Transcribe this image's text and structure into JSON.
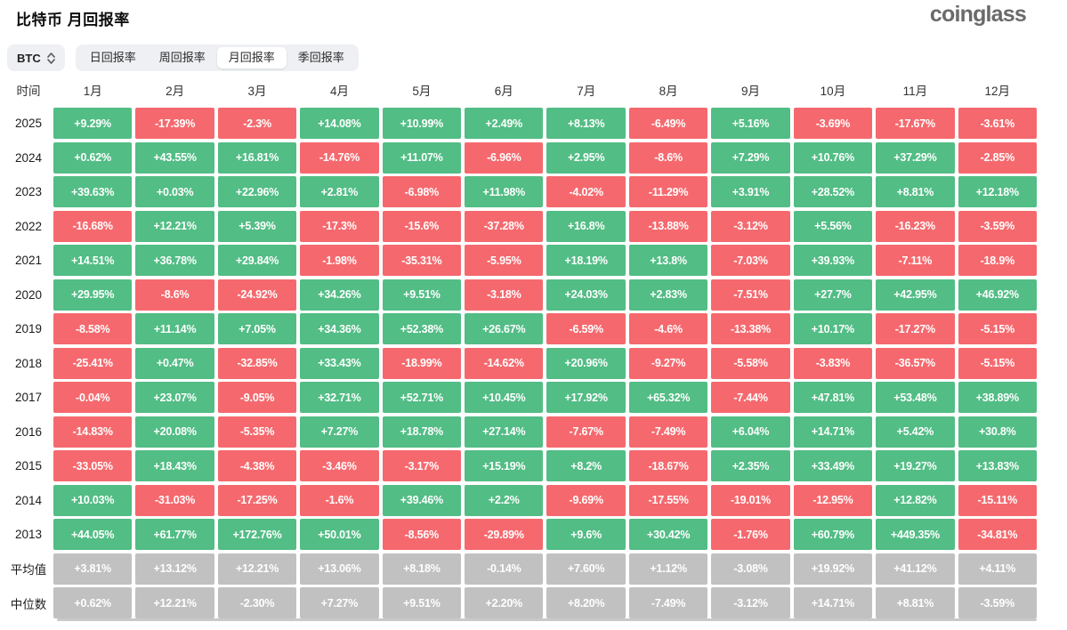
{
  "header": {
    "title": "比特币 月回报率",
    "logo": "coinglass"
  },
  "controls": {
    "coin": "BTC",
    "tabs": [
      {
        "label": "日回报率",
        "active": false
      },
      {
        "label": "周回报率",
        "active": false
      },
      {
        "label": "月回报率",
        "active": true
      },
      {
        "label": "季回报率",
        "active": false
      }
    ]
  },
  "chart_data": {
    "type": "heatmap",
    "title": "比特币 月回报率",
    "value_unit": "%",
    "row_header": "时间",
    "columns": [
      "1月",
      "2月",
      "3月",
      "4月",
      "5月",
      "6月",
      "7月",
      "8月",
      "9月",
      "10月",
      "11月",
      "12月"
    ],
    "rows": [
      {
        "label": "2025",
        "kind": "year",
        "values": [
          "+9.29%",
          "-17.39%",
          "-2.3%",
          "+14.08%",
          "+10.99%",
          "+2.49%",
          "+8.13%",
          "-6.49%",
          "+5.16%",
          "-3.69%",
          "-17.67%",
          "-3.61%"
        ]
      },
      {
        "label": "2024",
        "kind": "year",
        "values": [
          "+0.62%",
          "+43.55%",
          "+16.81%",
          "-14.76%",
          "+11.07%",
          "-6.96%",
          "+2.95%",
          "-8.6%",
          "+7.29%",
          "+10.76%",
          "+37.29%",
          "-2.85%"
        ]
      },
      {
        "label": "2023",
        "kind": "year",
        "values": [
          "+39.63%",
          "+0.03%",
          "+22.96%",
          "+2.81%",
          "-6.98%",
          "+11.98%",
          "-4.02%",
          "-11.29%",
          "+3.91%",
          "+28.52%",
          "+8.81%",
          "+12.18%"
        ]
      },
      {
        "label": "2022",
        "kind": "year",
        "values": [
          "-16.68%",
          "+12.21%",
          "+5.39%",
          "-17.3%",
          "-15.6%",
          "-37.28%",
          "+16.8%",
          "-13.88%",
          "-3.12%",
          "+5.56%",
          "-16.23%",
          "-3.59%"
        ]
      },
      {
        "label": "2021",
        "kind": "year",
        "values": [
          "+14.51%",
          "+36.78%",
          "+29.84%",
          "-1.98%",
          "-35.31%",
          "-5.95%",
          "+18.19%",
          "+13.8%",
          "-7.03%",
          "+39.93%",
          "-7.11%",
          "-18.9%"
        ]
      },
      {
        "label": "2020",
        "kind": "year",
        "values": [
          "+29.95%",
          "-8.6%",
          "-24.92%",
          "+34.26%",
          "+9.51%",
          "-3.18%",
          "+24.03%",
          "+2.83%",
          "-7.51%",
          "+27.7%",
          "+42.95%",
          "+46.92%"
        ]
      },
      {
        "label": "2019",
        "kind": "year",
        "values": [
          "-8.58%",
          "+11.14%",
          "+7.05%",
          "+34.36%",
          "+52.38%",
          "+26.67%",
          "-6.59%",
          "-4.6%",
          "-13.38%",
          "+10.17%",
          "-17.27%",
          "-5.15%"
        ]
      },
      {
        "label": "2018",
        "kind": "year",
        "values": [
          "-25.41%",
          "+0.47%",
          "-32.85%",
          "+33.43%",
          "-18.99%",
          "-14.62%",
          "+20.96%",
          "-9.27%",
          "-5.58%",
          "-3.83%",
          "-36.57%",
          "-5.15%"
        ]
      },
      {
        "label": "2017",
        "kind": "year",
        "values": [
          "-0.04%",
          "+23.07%",
          "-9.05%",
          "+32.71%",
          "+52.71%",
          "+10.45%",
          "+17.92%",
          "+65.32%",
          "-7.44%",
          "+47.81%",
          "+53.48%",
          "+38.89%"
        ]
      },
      {
        "label": "2016",
        "kind": "year",
        "values": [
          "-14.83%",
          "+20.08%",
          "-5.35%",
          "+7.27%",
          "+18.78%",
          "+27.14%",
          "-7.67%",
          "-7.49%",
          "+6.04%",
          "+14.71%",
          "+5.42%",
          "+30.8%"
        ]
      },
      {
        "label": "2015",
        "kind": "year",
        "values": [
          "-33.05%",
          "+18.43%",
          "-4.38%",
          "-3.46%",
          "-3.17%",
          "+15.19%",
          "+8.2%",
          "-18.67%",
          "+2.35%",
          "+33.49%",
          "+19.27%",
          "+13.83%"
        ]
      },
      {
        "label": "2014",
        "kind": "year",
        "values": [
          "+10.03%",
          "-31.03%",
          "-17.25%",
          "-1.6%",
          "+39.46%",
          "+2.2%",
          "-9.69%",
          "-17.55%",
          "-19.01%",
          "-12.95%",
          "+12.82%",
          "-15.11%"
        ]
      },
      {
        "label": "2013",
        "kind": "year",
        "values": [
          "+44.05%",
          "+61.77%",
          "+172.76%",
          "+50.01%",
          "-8.56%",
          "-29.89%",
          "+9.6%",
          "+30.42%",
          "-1.76%",
          "+60.79%",
          "+449.35%",
          "-34.81%"
        ]
      },
      {
        "label": "平均值",
        "kind": "summary",
        "values": [
          "+3.81%",
          "+13.12%",
          "+12.21%",
          "+13.06%",
          "+8.18%",
          "-0.14%",
          "+7.60%",
          "+1.12%",
          "-3.08%",
          "+19.92%",
          "+41.12%",
          "+4.11%"
        ]
      },
      {
        "label": "中位数",
        "kind": "summary",
        "values": [
          "+0.62%",
          "+12.21%",
          "-2.30%",
          "+7.27%",
          "+9.51%",
          "+2.20%",
          "+8.20%",
          "-7.49%",
          "-3.12%",
          "+14.71%",
          "+8.81%",
          "-3.59%"
        ]
      }
    ],
    "colors": {
      "positive": "#52bd85",
      "negative": "#f5696e",
      "summary": "#c1c1c1"
    },
    "legend_position": "none"
  }
}
